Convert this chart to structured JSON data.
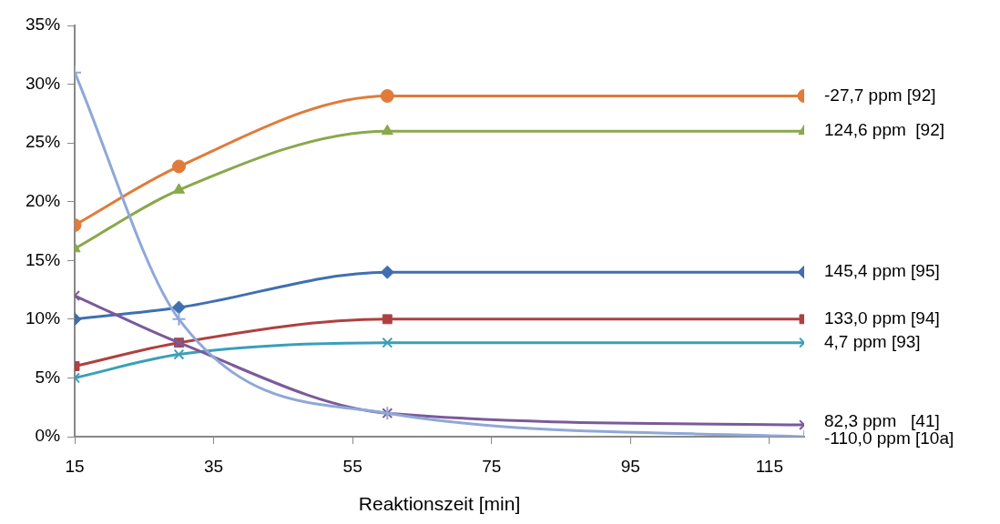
{
  "chart_data": {
    "type": "line",
    "xlabel": "Reaktionszeit [min]",
    "x": [
      15,
      30,
      60,
      120
    ],
    "xlim": [
      15,
      120
    ],
    "xticks": [
      15,
      35,
      55,
      75,
      95,
      115
    ],
    "ylim": [
      0,
      35
    ],
    "yticks": [
      {
        "value": 0,
        "label": "0%"
      },
      {
        "value": 5,
        "label": "5%"
      },
      {
        "value": 10,
        "label": "10%"
      },
      {
        "value": 15,
        "label": "15%"
      },
      {
        "value": 20,
        "label": "20%"
      },
      {
        "value": 25,
        "label": "25%"
      },
      {
        "value": 30,
        "label": "30%"
      },
      {
        "value": 35,
        "label": "35%"
      }
    ],
    "grid": false,
    "legend": false,
    "line_style": "solid",
    "series": [
      {
        "name": "-27,7 ppm [92]",
        "color": "#e07b39",
        "marker": "circle",
        "values": [
          18,
          23,
          29,
          29
        ]
      },
      {
        "name": "124,6 ppm  [92]",
        "color": "#8aa84a",
        "marker": "triangle",
        "values": [
          16,
          21,
          26,
          26
        ]
      },
      {
        "name": "145,4 ppm [95]",
        "color": "#3f6fb0",
        "marker": "diamond",
        "values": [
          10,
          11,
          14,
          14
        ]
      },
      {
        "name": "133,0 ppm [94]",
        "color": "#b04040",
        "marker": "square",
        "values": [
          6,
          8,
          10,
          10
        ]
      },
      {
        "name": "4,7 ppm [93]",
        "color": "#3a9fb8",
        "marker": "cross",
        "values": [
          5,
          7,
          8,
          8
        ]
      },
      {
        "name": "82,3 ppm   [41]",
        "color": "#7b5a9a",
        "marker": "cross",
        "values": [
          12,
          8,
          2,
          1
        ]
      },
      {
        "name": "-110,0 ppm [10a]",
        "color": "#8fa8d8",
        "marker": "plus",
        "values": [
          31,
          10,
          2,
          0
        ]
      }
    ]
  }
}
